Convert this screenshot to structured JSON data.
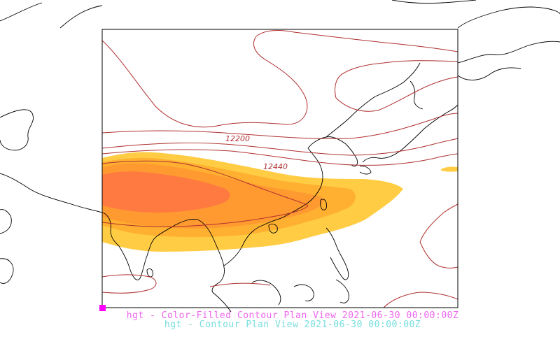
{
  "map": {
    "contour_labels": [
      {
        "text": "12200"
      },
      {
        "text": "12440"
      }
    ],
    "fill_colors": [
      "#ffcc44",
      "#ffb030",
      "#ff9a30",
      "#ff7a40"
    ],
    "contour_color": "#b03030",
    "marker_color": "#ff00ff"
  },
  "captions": {
    "fill_title": "hgt - Color-Filled Contour Plan View 2021-06-30 00:00:00Z",
    "fill_title_color": "#ee66ee",
    "contour_title": "hgt - Contour Plan View 2021-06-30 00:00:00Z",
    "contour_title_color": "#77dddd"
  }
}
